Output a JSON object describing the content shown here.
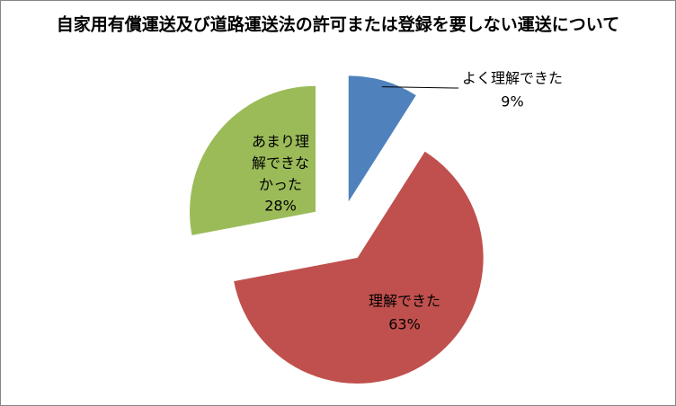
{
  "chart_data": {
    "type": "pie",
    "title": "自家用有償運送及び道路運送法の許可または登録を要しない運送について",
    "categories": [
      "よく理解できた",
      "理解できた",
      "あまり理解できなかった"
    ],
    "values": [
      9,
      63,
      28
    ],
    "value_labels": [
      "9%",
      "63%",
      "28%"
    ],
    "colors": [
      "#4f81bd",
      "#c0504d",
      "#9bbb59"
    ]
  }
}
